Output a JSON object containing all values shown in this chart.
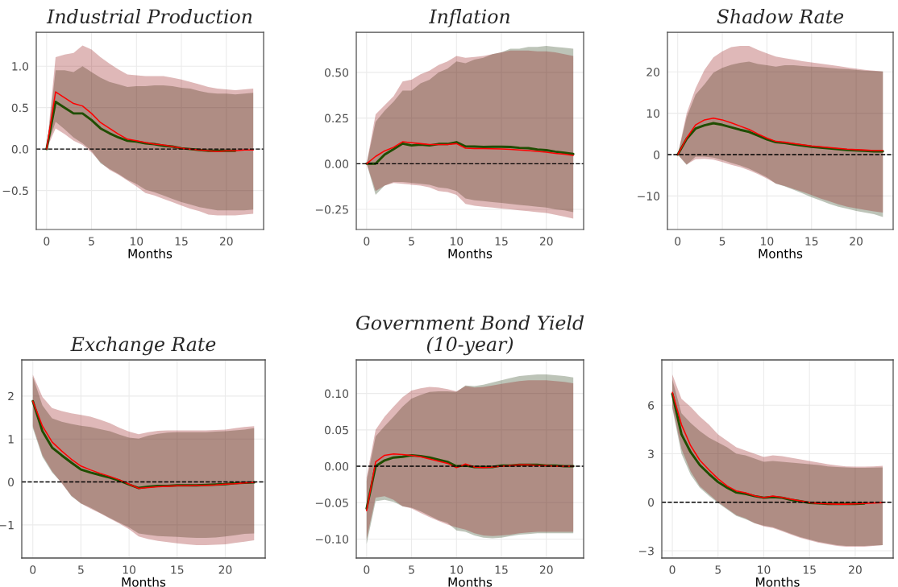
{
  "chart_data": [
    {
      "type": "line",
      "title": "Industrial Production",
      "xlabel": "Months",
      "x": [
        0,
        1,
        2,
        3,
        4,
        5,
        6,
        7,
        8,
        9,
        10,
        11,
        12,
        13,
        14,
        15,
        16,
        17,
        18,
        19,
        20,
        21,
        22,
        23
      ],
      "xlim": [
        -1.15,
        24.15
      ],
      "xticks": [
        0,
        5,
        10,
        15,
        20
      ],
      "ylim": [
        -0.97,
        1.41
      ],
      "yticks": [
        {
          "value": -0.5,
          "label": "−0.5"
        },
        {
          "value": 0,
          "label": "0.0"
        },
        {
          "value": 0.5,
          "label": "0.5"
        },
        {
          "value": 1,
          "label": "1.0"
        }
      ],
      "grid": true,
      "ref_lines": [
        {
          "axis": "y",
          "value": 0,
          "color": "#000000",
          "line_style": "dashed"
        }
      ],
      "series": [
        {
          "color": "#1f4d00",
          "values": [
            0,
            0.57,
            0.5,
            0.43,
            0.43,
            0.35,
            0.25,
            0.19,
            0.14,
            0.1,
            0.09,
            0.07,
            0.06,
            0.04,
            0.03,
            0.01,
            0.0,
            -0.01,
            -0.02,
            -0.02,
            -0.02,
            -0.02,
            null,
            null
          ],
          "lower": [
            0,
            0.33,
            0.24,
            0.14,
            0.07,
            -0.02,
            -0.17,
            -0.24,
            -0.3,
            -0.37,
            -0.42,
            -0.49,
            -0.52,
            -0.56,
            -0.6,
            -0.64,
            -0.67,
            -0.7,
            -0.72,
            -0.74,
            -0.74,
            -0.74,
            -0.74,
            -0.73
          ],
          "upper": [
            0,
            0.95,
            0.95,
            0.93,
            1.0,
            0.93,
            0.86,
            0.81,
            0.78,
            0.75,
            0.76,
            0.76,
            0.77,
            0.77,
            0.76,
            0.74,
            0.73,
            0.7,
            0.68,
            0.67,
            0.67,
            0.66,
            0.67,
            0.68
          ]
        },
        {
          "color": "#ff0000",
          "values": [
            0,
            0.69,
            0.62,
            0.55,
            0.52,
            0.43,
            0.32,
            0.25,
            0.18,
            0.12,
            0.1,
            0.08,
            0.06,
            0.05,
            0.03,
            0.01,
            0.0,
            -0.01,
            -0.02,
            -0.03,
            -0.02,
            -0.02,
            -0.01,
            -0.01
          ],
          "lower": [
            0,
            0.25,
            0.18,
            0.1,
            0.05,
            -0.04,
            -0.16,
            -0.25,
            -0.31,
            -0.38,
            -0.45,
            -0.53,
            -0.56,
            -0.6,
            -0.64,
            -0.68,
            -0.72,
            -0.75,
            -0.79,
            -0.8,
            -0.8,
            -0.8,
            -0.79,
            -0.78
          ],
          "upper": [
            0,
            1.11,
            1.14,
            1.16,
            1.25,
            1.2,
            1.11,
            1.03,
            0.96,
            0.9,
            0.89,
            0.88,
            0.88,
            0.88,
            0.86,
            0.84,
            0.81,
            0.78,
            0.75,
            0.73,
            0.72,
            0.71,
            0.72,
            0.73
          ]
        }
      ]
    },
    {
      "type": "line",
      "title": "Inflation",
      "xlabel": "Months",
      "x": [
        0,
        1,
        2,
        3,
        4,
        5,
        6,
        7,
        8,
        9,
        10,
        11,
        12,
        13,
        14,
        15,
        16,
        17,
        18,
        19,
        20,
        21,
        22,
        23
      ],
      "xlim": [
        -1.15,
        24.15
      ],
      "xticks": [
        0,
        5,
        10,
        15,
        20
      ],
      "ylim": [
        -0.36,
        0.72
      ],
      "yticks": [
        {
          "value": -0.25,
          "label": "−0.25"
        },
        {
          "value": 0,
          "label": "0.00"
        },
        {
          "value": 0.25,
          "label": "0.25"
        },
        {
          "value": 0.5,
          "label": "0.50"
        }
      ],
      "grid": true,
      "ref_lines": [
        {
          "axis": "y",
          "value": 0,
          "color": "#000000",
          "line_style": "dashed"
        }
      ],
      "series": [
        {
          "color": "#1f4d00",
          "values": [
            0,
            0.0,
            0.05,
            0.08,
            0.11,
            0.1,
            0.105,
            0.1,
            0.108,
            0.108,
            0.118,
            0.095,
            0.094,
            0.092,
            0.093,
            0.093,
            0.092,
            0.087,
            0.085,
            0.078,
            0.074,
            0.066,
            0.06,
            0.053
          ],
          "lower": [
            0,
            -0.17,
            -0.12,
            -0.1,
            -0.1,
            -0.105,
            -0.11,
            -0.115,
            -0.13,
            -0.135,
            -0.15,
            -0.19,
            -0.2,
            -0.205,
            -0.21,
            -0.215,
            -0.22,
            -0.225,
            -0.23,
            -0.235,
            -0.24,
            -0.25,
            -0.255,
            -0.265
          ],
          "upper": [
            0,
            0.23,
            0.29,
            0.34,
            0.4,
            0.4,
            0.44,
            0.46,
            0.5,
            0.52,
            0.56,
            0.55,
            0.57,
            0.58,
            0.6,
            0.61,
            0.63,
            0.63,
            0.64,
            0.64,
            0.645,
            0.64,
            0.635,
            0.63
          ]
        },
        {
          "color": "#ff0000",
          "values": [
            0,
            0.04,
            0.07,
            0.09,
            0.12,
            0.115,
            0.11,
            0.105,
            0.105,
            0.105,
            0.11,
            0.085,
            0.083,
            0.083,
            0.082,
            0.081,
            0.079,
            0.075,
            0.072,
            0.068,
            0.063,
            0.057,
            0.052,
            0.046
          ],
          "lower": [
            0,
            -0.15,
            -0.12,
            -0.105,
            -0.11,
            -0.115,
            -0.12,
            -0.13,
            -0.15,
            -0.155,
            -0.17,
            -0.22,
            -0.23,
            -0.235,
            -0.24,
            -0.245,
            -0.25,
            -0.255,
            -0.26,
            -0.265,
            -0.27,
            -0.28,
            -0.29,
            -0.3
          ],
          "upper": [
            0,
            0.27,
            0.32,
            0.37,
            0.45,
            0.46,
            0.49,
            0.51,
            0.54,
            0.56,
            0.59,
            0.58,
            0.585,
            0.59,
            0.6,
            0.61,
            0.62,
            0.62,
            0.62,
            0.615,
            0.615,
            0.61,
            0.6,
            0.59
          ]
        }
      ]
    },
    {
      "type": "line",
      "title": "Shadow Rate",
      "xlabel": "Months",
      "x": [
        0,
        1,
        2,
        3,
        4,
        5,
        6,
        7,
        8,
        9,
        10,
        11,
        12,
        13,
        14,
        15,
        16,
        17,
        18,
        19,
        20,
        21,
        22,
        23
      ],
      "xlim": [
        -1.15,
        24.15
      ],
      "xticks": [
        0,
        5,
        10,
        15,
        20
      ],
      "ylim": [
        -18.1,
        29.6
      ],
      "yticks": [
        {
          "value": -10,
          "label": "−10"
        },
        0,
        10,
        20
      ],
      "grid": true,
      "ref_lines": [
        {
          "axis": "y",
          "value": 0,
          "color": "#000000",
          "line_style": "dashed"
        }
      ],
      "series": [
        {
          "color": "#1f4d00",
          "values": [
            0,
            3.8,
            6.3,
            7.1,
            7.6,
            7.2,
            6.6,
            6.0,
            5.5,
            4.6,
            3.7,
            3.0,
            2.8,
            2.5,
            2.2,
            1.9,
            1.7,
            1.5,
            1.3,
            1.1,
            1.0,
            0.9,
            0.8,
            0.8
          ],
          "lower": [
            0,
            -2.5,
            -0.5,
            -0.5,
            -0.7,
            -1.3,
            -2.0,
            -2.6,
            -3.4,
            -4.4,
            -5.5,
            -7.0,
            -7.7,
            -8.5,
            -9.4,
            -10.3,
            -11.1,
            -11.9,
            -12.6,
            -13.1,
            -13.6,
            -14.0,
            -14.4,
            -15.1
          ],
          "upper": [
            0,
            9,
            14.5,
            17,
            19.8,
            21,
            21.7,
            22.2,
            22.5,
            21.9,
            21.6,
            21.3,
            21.6,
            21.6,
            21.4,
            21.3,
            21.2,
            21,
            20.8,
            20.7,
            20.5,
            20.3,
            20.2,
            20.1
          ]
        },
        {
          "color": "#ff0000",
          "values": [
            0,
            4,
            7.2,
            8.4,
            8.8,
            8.4,
            7.7,
            6.9,
            6.1,
            5,
            4,
            3.2,
            3.0,
            2.7,
            2.4,
            2.1,
            1.9,
            1.7,
            1.5,
            1.3,
            1.2,
            1.1,
            1.0,
            1.0
          ],
          "lower": [
            0,
            -2.4,
            -1.1,
            -1.0,
            -1.2,
            -1.8,
            -2.5,
            -3.0,
            -3.8,
            -4.7,
            -5.8,
            -7.0,
            -7.6,
            -8.3,
            -9.0,
            -9.8,
            -10.6,
            -11.3,
            -12.0,
            -12.6,
            -13.0,
            -13.4,
            -13.7,
            -14.0
          ],
          "upper": [
            0,
            10,
            16,
            20.5,
            23.5,
            25,
            26,
            26.3,
            26.3,
            25.3,
            24.5,
            23.7,
            23.3,
            23,
            22.6,
            22.3,
            22,
            21.7,
            21.4,
            21.1,
            20.8,
            20.5,
            20.3,
            20.1
          ]
        }
      ]
    },
    {
      "type": "line",
      "title": "Exchange Rate",
      "xlabel": "Months",
      "x": [
        0,
        1,
        2,
        3,
        4,
        5,
        6,
        7,
        8,
        9,
        10,
        11,
        12,
        13,
        14,
        15,
        16,
        17,
        18,
        19,
        20,
        21,
        22,
        23
      ],
      "xlim": [
        -1.15,
        24.15
      ],
      "xticks": [
        0,
        5,
        10,
        15,
        20
      ],
      "ylim": [
        -1.77,
        2.84
      ],
      "yticks": [
        {
          "value": -1,
          "label": "−1"
        },
        0,
        1,
        2
      ],
      "grid": true,
      "ref_lines": [
        {
          "axis": "y",
          "value": 0,
          "color": "#000000",
          "line_style": "dashed"
        }
      ],
      "series": [
        {
          "color": "#1f4d00",
          "values": [
            1.88,
            1.18,
            0.8,
            0.62,
            0.45,
            0.29,
            0.22,
            0.16,
            0.1,
            0.03,
            -0.06,
            -0.14,
            -0.11,
            -0.09,
            -0.09,
            -0.08,
            -0.08,
            -0.08,
            -0.07,
            -0.06,
            -0.05,
            -0.03,
            -0.02,
            -0.01
          ],
          "lower": [
            1.25,
            0.58,
            0.22,
            -0.02,
            -0.33,
            -0.5,
            -0.6,
            -0.72,
            -0.84,
            -0.95,
            -1.06,
            -1.2,
            -1.23,
            -1.26,
            -1.27,
            -1.28,
            -1.29,
            -1.3,
            -1.3,
            -1.29,
            -1.27,
            -1.24,
            -1.21,
            -1.2
          ],
          "upper": [
            2.45,
            1.78,
            1.48,
            1.4,
            1.35,
            1.31,
            1.28,
            1.23,
            1.18,
            1.1,
            1.03,
            1.01,
            1.08,
            1.12,
            1.15,
            1.16,
            1.16,
            1.16,
            1.16,
            1.17,
            1.18,
            1.2,
            1.22,
            1.25
          ]
        },
        {
          "color": "#ff0000",
          "values": [
            1.88,
            1.3,
            0.93,
            0.72,
            0.53,
            0.37,
            0.28,
            0.2,
            0.13,
            0.05,
            -0.05,
            -0.15,
            -0.13,
            -0.11,
            -0.1,
            -0.09,
            -0.09,
            -0.08,
            -0.08,
            -0.07,
            -0.05,
            -0.04,
            -0.02,
            -0.01
          ],
          "lower": [
            1.3,
            0.62,
            0.25,
            -0.03,
            -0.32,
            -0.5,
            -0.62,
            -0.73,
            -0.85,
            -0.97,
            -1.1,
            -1.27,
            -1.33,
            -1.37,
            -1.4,
            -1.43,
            -1.45,
            -1.47,
            -1.47,
            -1.46,
            -1.45,
            -1.42,
            -1.39,
            -1.36
          ],
          "upper": [
            2.5,
            1.98,
            1.72,
            1.65,
            1.6,
            1.56,
            1.52,
            1.45,
            1.37,
            1.26,
            1.17,
            1.11,
            1.16,
            1.19,
            1.2,
            1.2,
            1.2,
            1.2,
            1.2,
            1.21,
            1.22,
            1.25,
            1.28,
            1.3
          ]
        }
      ]
    },
    {
      "type": "line",
      "title": "Government Bond Yield\n(10-year)",
      "xlabel": "Months",
      "x": [
        0,
        1,
        2,
        3,
        4,
        5,
        6,
        7,
        8,
        9,
        10,
        11,
        12,
        13,
        14,
        15,
        16,
        17,
        18,
        19,
        20,
        21,
        22,
        23
      ],
      "xlim": [
        -1.15,
        24.15
      ],
      "xticks": [
        0,
        5,
        10,
        15,
        20
      ],
      "ylim": [
        -0.126,
        0.146
      ],
      "yticks": [
        {
          "value": -0.1,
          "label": "−0.10"
        },
        {
          "value": -0.05,
          "label": "−0.05"
        },
        {
          "value": 0,
          "label": "0.00"
        },
        {
          "value": 0.05,
          "label": "0.05"
        },
        {
          "value": 0.1,
          "label": "0.10"
        }
      ],
      "grid": true,
      "ref_lines": [
        {
          "axis": "y",
          "value": 0,
          "color": "#000000",
          "line_style": "dashed"
        }
      ],
      "series": [
        {
          "color": "#1f4d00",
          "values": [
            -0.058,
            0.0,
            0.008,
            0.012,
            0.013,
            0.015,
            0.014,
            0.012,
            0.009,
            0.006,
            0.0,
            0.001,
            -0.001,
            -0.001,
            -0.001,
            0.001,
            0.001,
            0.002,
            0.002,
            0.002,
            0.001,
            0.001,
            0.0,
            0.0
          ],
          "lower": [
            -0.107,
            -0.048,
            -0.046,
            -0.049,
            -0.055,
            -0.057,
            -0.062,
            -0.068,
            -0.074,
            -0.078,
            -0.088,
            -0.09,
            -0.095,
            -0.098,
            -0.099,
            -0.098,
            -0.096,
            -0.094,
            -0.093,
            -0.092,
            -0.092,
            -0.092,
            -0.092,
            -0.092
          ],
          "upper": [
            -0.02,
            0.041,
            0.055,
            0.068,
            0.082,
            0.093,
            0.098,
            0.102,
            0.103,
            0.103,
            0.102,
            0.111,
            0.11,
            0.112,
            0.115,
            0.118,
            0.121,
            0.124,
            0.125,
            0.126,
            0.126,
            0.125,
            0.124,
            0.122
          ]
        },
        {
          "color": "#ff0000",
          "values": [
            -0.061,
            0.006,
            0.015,
            0.017,
            0.016,
            0.015,
            0.013,
            0.01,
            0.007,
            0.004,
            -0.002,
            0.003,
            -0.001,
            -0.002,
            -0.001,
            0.0,
            0.001,
            0.002,
            0.002,
            0.001,
            0.001,
            0.0,
            0.0,
            0.0
          ],
          "lower": [
            -0.1,
            -0.043,
            -0.041,
            -0.046,
            -0.055,
            -0.058,
            -0.064,
            -0.07,
            -0.075,
            -0.08,
            -0.084,
            -0.087,
            -0.092,
            -0.095,
            -0.096,
            -0.095,
            -0.094,
            -0.092,
            -0.091,
            -0.09,
            -0.09,
            -0.09,
            -0.09,
            -0.09
          ],
          "upper": [
            -0.015,
            0.05,
            0.068,
            0.082,
            0.095,
            0.104,
            0.107,
            0.109,
            0.108,
            0.106,
            0.103,
            0.11,
            0.108,
            0.109,
            0.111,
            0.113,
            0.115,
            0.117,
            0.118,
            0.118,
            0.118,
            0.117,
            0.116,
            0.114
          ]
        }
      ]
    },
    {
      "type": "line",
      "xlabel": "Months",
      "x": [
        0,
        1,
        2,
        3,
        4,
        5,
        6,
        7,
        8,
        9,
        10,
        11,
        12,
        13,
        14,
        15,
        16,
        17,
        18,
        19,
        20,
        21,
        22,
        23
      ],
      "xlim": [
        -1.15,
        24.15
      ],
      "xticks": [
        0,
        5,
        10,
        15,
        20
      ],
      "ylim": [
        -3.45,
        8.8
      ],
      "yticks": [
        {
          "value": -3,
          "label": "−3"
        },
        0,
        3,
        6
      ],
      "grid": true,
      "ref_lines": [
        {
          "axis": "y",
          "value": 0,
          "color": "#000000",
          "line_style": "dashed"
        }
      ],
      "series": [
        {
          "color": "#1f4d00",
          "values": [
            6.7,
            4.2,
            3.1,
            2.3,
            1.75,
            1.25,
            0.9,
            0.6,
            0.52,
            0.38,
            0.28,
            0.32,
            0.28,
            0.15,
            0.06,
            -0.04,
            -0.07,
            -0.1,
            -0.1,
            -0.1,
            -0.1,
            -0.08,
            null,
            null
          ],
          "lower": [
            5.8,
            3.0,
            1.7,
            0.9,
            0.4,
            -0.05,
            -0.45,
            -0.85,
            -1.05,
            -1.3,
            -1.45,
            -1.55,
            -1.75,
            -1.95,
            -2.15,
            -2.3,
            -2.45,
            -2.55,
            -2.65,
            -2.7,
            -2.7,
            -2.7,
            -2.68,
            -2.65
          ],
          "upper": [
            7.6,
            5.5,
            4.9,
            4.4,
            4.0,
            3.7,
            3.4,
            3.0,
            2.9,
            2.7,
            2.5,
            2.55,
            2.5,
            2.45,
            2.4,
            2.35,
            2.3,
            2.22,
            2.18,
            2.15,
            2.13,
            2.13,
            2.14,
            2.15
          ]
        },
        {
          "color": "#ff0000",
          "values": [
            6.8,
            4.8,
            3.5,
            2.6,
            2.0,
            1.45,
            1.0,
            0.7,
            0.58,
            0.4,
            0.28,
            0.38,
            0.3,
            0.18,
            0.08,
            -0.02,
            -0.07,
            -0.1,
            -0.12,
            -0.12,
            -0.1,
            -0.08,
            -0.05,
            -0.02
          ],
          "lower": [
            5.9,
            3.3,
            1.9,
            1.0,
            0.5,
            0.0,
            -0.4,
            -0.8,
            -1.0,
            -1.3,
            -1.5,
            -1.6,
            -1.8,
            -2.0,
            -2.2,
            -2.35,
            -2.5,
            -2.6,
            -2.7,
            -2.75,
            -2.75,
            -2.75,
            -2.7,
            -2.65
          ],
          "upper": [
            7.9,
            6.4,
            5.9,
            5.3,
            4.8,
            4.2,
            3.8,
            3.4,
            3.2,
            3.0,
            2.8,
            2.9,
            2.85,
            2.75,
            2.65,
            2.55,
            2.45,
            2.35,
            2.28,
            2.22,
            2.2,
            2.2,
            2.22,
            2.25
          ]
        }
      ]
    }
  ]
}
